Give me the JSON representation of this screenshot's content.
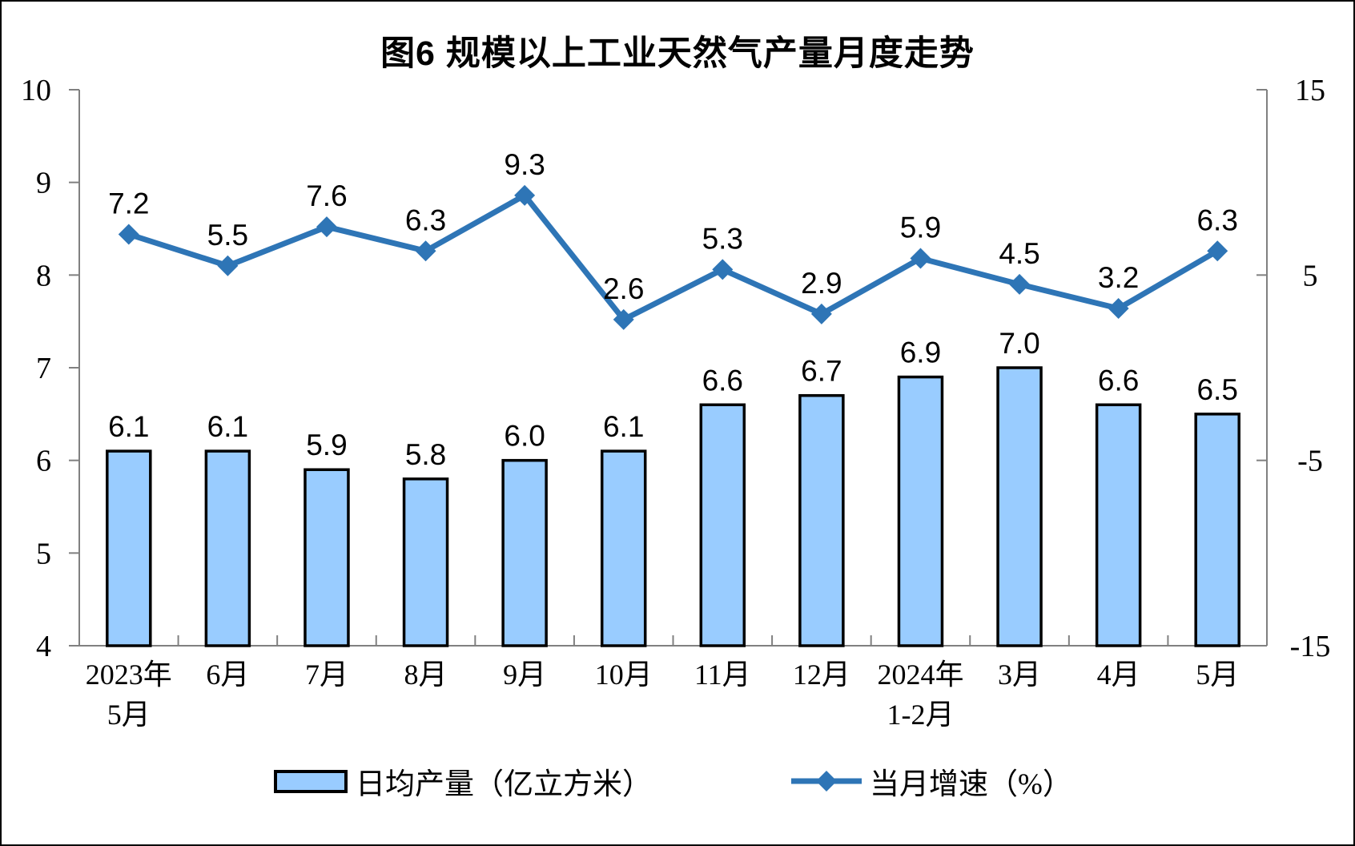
{
  "title": "图6 规模以上工业天然气产量月度走势",
  "chart_data": {
    "type": "bar",
    "subtype": "bar-line-combo",
    "categories": [
      [
        "2023年",
        "5月"
      ],
      [
        "6月"
      ],
      [
        "7月"
      ],
      [
        "8月"
      ],
      [
        "9月"
      ],
      [
        "10月"
      ],
      [
        "11月"
      ],
      [
        "12月"
      ],
      [
        "2024年",
        "1-2月"
      ],
      [
        "3月"
      ],
      [
        "4月"
      ],
      [
        "5月"
      ]
    ],
    "series": [
      {
        "name": "日均产量（亿立方米）",
        "type": "bar",
        "axis": "left",
        "values": [
          6.1,
          6.1,
          5.9,
          5.8,
          6.0,
          6.1,
          6.6,
          6.7,
          6.9,
          7.0,
          6.6,
          6.5
        ]
      },
      {
        "name": "当月增速（%）",
        "type": "line",
        "axis": "right",
        "marker": "diamond",
        "values": [
          7.2,
          5.5,
          7.6,
          6.3,
          9.3,
          2.6,
          5.3,
          2.9,
          5.9,
          4.5,
          3.2,
          6.3
        ]
      }
    ],
    "title": "图6 规模以上工业天然气产量月度走势",
    "xlabel": "",
    "ylabel_left": "日均产量（亿立方米）",
    "ylabel_right": "当月增速（%）",
    "left_axis": {
      "min": 4,
      "max": 10,
      "step": 1,
      "tick_labels": [
        "10",
        "9",
        "8",
        "7",
        "6",
        "5",
        "4"
      ]
    },
    "right_axis": {
      "min": -15,
      "max": 15,
      "step": 10,
      "tick_labels": [
        "15",
        "5",
        "-5",
        "-15"
      ]
    },
    "grid": false,
    "data_labels": true,
    "legend_position": "bottom"
  },
  "colors": {
    "bar_fill": "#99CCFF",
    "bar_border": "#000000",
    "line": "#2E75B6",
    "axis": "#808080",
    "text": "#000000",
    "background": "#FFFFFF"
  }
}
